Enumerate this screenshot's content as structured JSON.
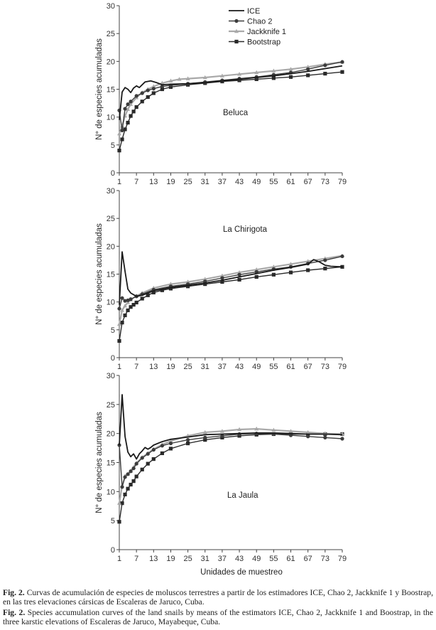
{
  "figure": {
    "xlabel": "Unidades de muestreo",
    "ylabel": "N° de especies acumuladas",
    "legend": [
      "ICE",
      "Chao 2",
      "Jackknife 1",
      "Bootstrap"
    ]
  },
  "caption": {
    "es_label": "Fig. 2.",
    "es_text": "Curvas de acumulación de especies de moluscos terrestres a partir de los estimadores ICE, Chao 2, Jackknife 1 y Boostrap, en las tres elevaciones cársicas de Escaleras de Jaruco, Cuba.",
    "en_label": "Fig. 2.",
    "en_text": "Species accumulation curves of the land snails by means of the estimators ICE, Chao 2, Jackknife 1 and Boostrap, in the three karstic elevations of Escaleras de Jaruco, Mayabeque, Cuba."
  },
  "colors": {
    "ICE": "#1a1a1a",
    "Chao 2": "#3c3c3c",
    "Jackknife 1": "#a9a9a9",
    "Bootstrap": "#2a2a2a"
  },
  "chart_data": [
    {
      "type": "line",
      "title": "Beluca",
      "xlabel": "",
      "ylabel": "N° de especies acumuladas",
      "xlim": [
        1,
        79
      ],
      "ylim": [
        0,
        30
      ],
      "xticks": [
        1,
        7,
        13,
        19,
        25,
        31,
        37,
        43,
        49,
        55,
        61,
        67,
        73,
        79
      ],
      "yticks": [
        0,
        5,
        10,
        15,
        20,
        25,
        30
      ],
      "legend": "top-center",
      "series": [
        {
          "name": "ICE",
          "x": [
            1,
            2,
            3,
            4,
            5,
            6,
            7,
            8,
            10,
            12,
            14,
            16,
            19,
            25,
            31,
            37,
            43,
            49,
            55,
            61,
            67,
            73,
            79
          ],
          "y": [
            9.5,
            14.5,
            15.3,
            15,
            14.4,
            15.2,
            15.6,
            15.3,
            16.3,
            16.5,
            16.2,
            15.8,
            15.9,
            16,
            16.2,
            16.5,
            16.8,
            17.1,
            17.4,
            17.8,
            18.2,
            18.7,
            19.2
          ]
        },
        {
          "name": "Chao 2",
          "x": [
            1,
            2,
            3,
            4,
            5,
            7,
            9,
            11,
            13,
            16,
            19,
            25,
            31,
            37,
            43,
            49,
            55,
            61,
            67,
            73,
            79
          ],
          "y": [
            11.2,
            7.6,
            11.5,
            12.3,
            12.8,
            13.8,
            14.3,
            14.8,
            15.1,
            15.5,
            15.7,
            16,
            16.3,
            16.6,
            16.9,
            17.2,
            17.6,
            18,
            18.6,
            19.3,
            19.9
          ]
        },
        {
          "name": "Jackknife 1",
          "x": [
            1,
            2,
            3,
            4,
            5,
            7,
            9,
            11,
            13,
            16,
            19,
            22,
            25,
            31,
            37,
            43,
            49,
            55,
            61,
            67,
            73,
            79
          ],
          "y": [
            7,
            8.4,
            10.2,
            11.4,
            12.3,
            13.5,
            14.4,
            15,
            15.5,
            16.1,
            16.5,
            16.8,
            16.9,
            17.1,
            17.4,
            17.7,
            18,
            18.3,
            18.6,
            19,
            19.5,
            19.9
          ]
        },
        {
          "name": "Bootstrap",
          "x": [
            1,
            2,
            3,
            4,
            5,
            6,
            7,
            9,
            11,
            13,
            16,
            19,
            25,
            31,
            37,
            43,
            49,
            55,
            61,
            67,
            73,
            79
          ],
          "y": [
            4,
            6,
            7.8,
            9,
            10.2,
            11,
            11.8,
            12.8,
            13.6,
            14.3,
            15,
            15.4,
            15.8,
            16.1,
            16.4,
            16.6,
            16.8,
            17,
            17.2,
            17.5,
            17.8,
            18.1
          ]
        }
      ],
      "annotation": "Beluca"
    },
    {
      "type": "line",
      "title": "La Chirigota",
      "xlabel": "",
      "ylabel": "N° de especies acumuladas",
      "xlim": [
        1,
        79
      ],
      "ylim": [
        0,
        30
      ],
      "xticks": [
        1,
        7,
        13,
        19,
        25,
        31,
        37,
        43,
        49,
        55,
        61,
        67,
        73,
        79
      ],
      "yticks": [
        0,
        5,
        10,
        15,
        20,
        25,
        30
      ],
      "legend": "none",
      "series": [
        {
          "name": "ICE",
          "x": [
            1,
            2,
            3,
            4,
            5,
            7,
            9,
            13,
            19,
            25,
            31,
            37,
            43,
            49,
            55,
            61,
            67,
            69,
            71,
            73,
            75,
            79
          ],
          "y": [
            9.5,
            19,
            15.5,
            12.3,
            11.6,
            11,
            11.2,
            12,
            12.6,
            13,
            13.4,
            13.9,
            14.5,
            15.1,
            15.7,
            16.2,
            16.8,
            17.6,
            17.2,
            16.6,
            16.4,
            16.3
          ]
        },
        {
          "name": "Chao 2",
          "x": [
            1,
            2,
            3,
            4,
            5,
            7,
            9,
            13,
            19,
            25,
            31,
            37,
            43,
            49,
            55,
            61,
            67,
            73,
            79
          ],
          "y": [
            8.8,
            10.7,
            10.2,
            10.3,
            10.5,
            11,
            11.4,
            12.2,
            12.8,
            13.2,
            13.7,
            14.3,
            14.9,
            15.4,
            15.9,
            16.3,
            16.9,
            17.5,
            18.2
          ]
        },
        {
          "name": "Jackknife 1",
          "x": [
            1,
            2,
            3,
            4,
            5,
            7,
            9,
            13,
            19,
            25,
            31,
            37,
            43,
            49,
            55,
            61,
            67,
            73,
            79
          ],
          "y": [
            6,
            8.5,
            9.3,
            9.9,
            10.4,
            11.1,
            11.6,
            12.5,
            13.2,
            13.6,
            14.1,
            14.7,
            15.3,
            15.8,
            16.3,
            16.8,
            17.3,
            17.8,
            18.3
          ]
        },
        {
          "name": "Bootstrap",
          "x": [
            1,
            2,
            3,
            4,
            5,
            6,
            7,
            9,
            11,
            13,
            16,
            19,
            25,
            31,
            37,
            43,
            49,
            55,
            61,
            67,
            73,
            79
          ],
          "y": [
            3,
            6.3,
            7.6,
            8.5,
            9.1,
            9.5,
            9.9,
            10.6,
            11.2,
            11.7,
            12.1,
            12.4,
            12.8,
            13.2,
            13.6,
            14,
            14.5,
            14.9,
            15.3,
            15.7,
            16,
            16.3
          ]
        }
      ],
      "annotation": "La Chirigota"
    },
    {
      "type": "line",
      "title": "La Jaula",
      "xlabel": "Unidades de muestreo",
      "ylabel": "N° de especies acumuladas",
      "xlim": [
        1,
        79
      ],
      "ylim": [
        0,
        30
      ],
      "xticks": [
        1,
        7,
        13,
        19,
        25,
        31,
        37,
        43,
        49,
        55,
        61,
        67,
        73,
        79
      ],
      "yticks": [
        0,
        5,
        10,
        15,
        20,
        25,
        30
      ],
      "legend": "none",
      "series": [
        {
          "name": "ICE",
          "x": [
            1,
            2,
            3,
            4,
            5,
            6,
            7,
            8,
            9,
            10,
            11,
            12,
            13,
            16,
            19,
            25,
            31,
            37,
            43,
            49,
            55,
            61,
            67,
            73,
            79
          ],
          "y": [
            18,
            26.7,
            19.5,
            16.8,
            16,
            16.5,
            15.6,
            16.5,
            17,
            17.6,
            17.3,
            17.6,
            18,
            18.6,
            19,
            19.4,
            19.8,
            19.9,
            20,
            20.1,
            20.1,
            20,
            19.9,
            19.9,
            19.8
          ]
        },
        {
          "name": "Chao 2",
          "x": [
            1,
            2,
            3,
            4,
            5,
            6,
            7,
            9,
            11,
            13,
            16,
            19,
            25,
            31,
            37,
            43,
            49,
            55,
            61,
            67,
            73,
            79
          ],
          "y": [
            18,
            10.8,
            12.5,
            13,
            13.5,
            14,
            14.8,
            15.8,
            16.5,
            17.2,
            17.9,
            18.3,
            18.9,
            19.3,
            19.6,
            19.9,
            20,
            19.9,
            19.7,
            19.5,
            19.3,
            19.1
          ]
        },
        {
          "name": "Jackknife 1",
          "x": [
            1,
            2,
            3,
            4,
            5,
            6,
            7,
            9,
            11,
            13,
            16,
            19,
            25,
            31,
            37,
            43,
            49,
            55,
            61,
            67,
            73,
            79
          ],
          "y": [
            8,
            11,
            12.7,
            13,
            13.5,
            14.2,
            14.9,
            15.9,
            16.6,
            17.3,
            18.1,
            18.7,
            19.6,
            20.2,
            20.4,
            20.7,
            20.8,
            20.6,
            20.4,
            20.2,
            20,
            19.9
          ]
        },
        {
          "name": "Bootstrap",
          "x": [
            1,
            2,
            3,
            4,
            5,
            6,
            7,
            9,
            11,
            13,
            16,
            19,
            25,
            31,
            37,
            43,
            49,
            55,
            61,
            67,
            73,
            79
          ],
          "y": [
            4.8,
            8,
            9.5,
            10.5,
            11.2,
            11.8,
            12.6,
            13.8,
            14.8,
            15.6,
            16.6,
            17.4,
            18.3,
            18.9,
            19.3,
            19.6,
            19.8,
            19.9,
            19.9,
            19.9,
            19.9,
            19.9
          ]
        }
      ],
      "annotation": "La Jaula"
    }
  ]
}
